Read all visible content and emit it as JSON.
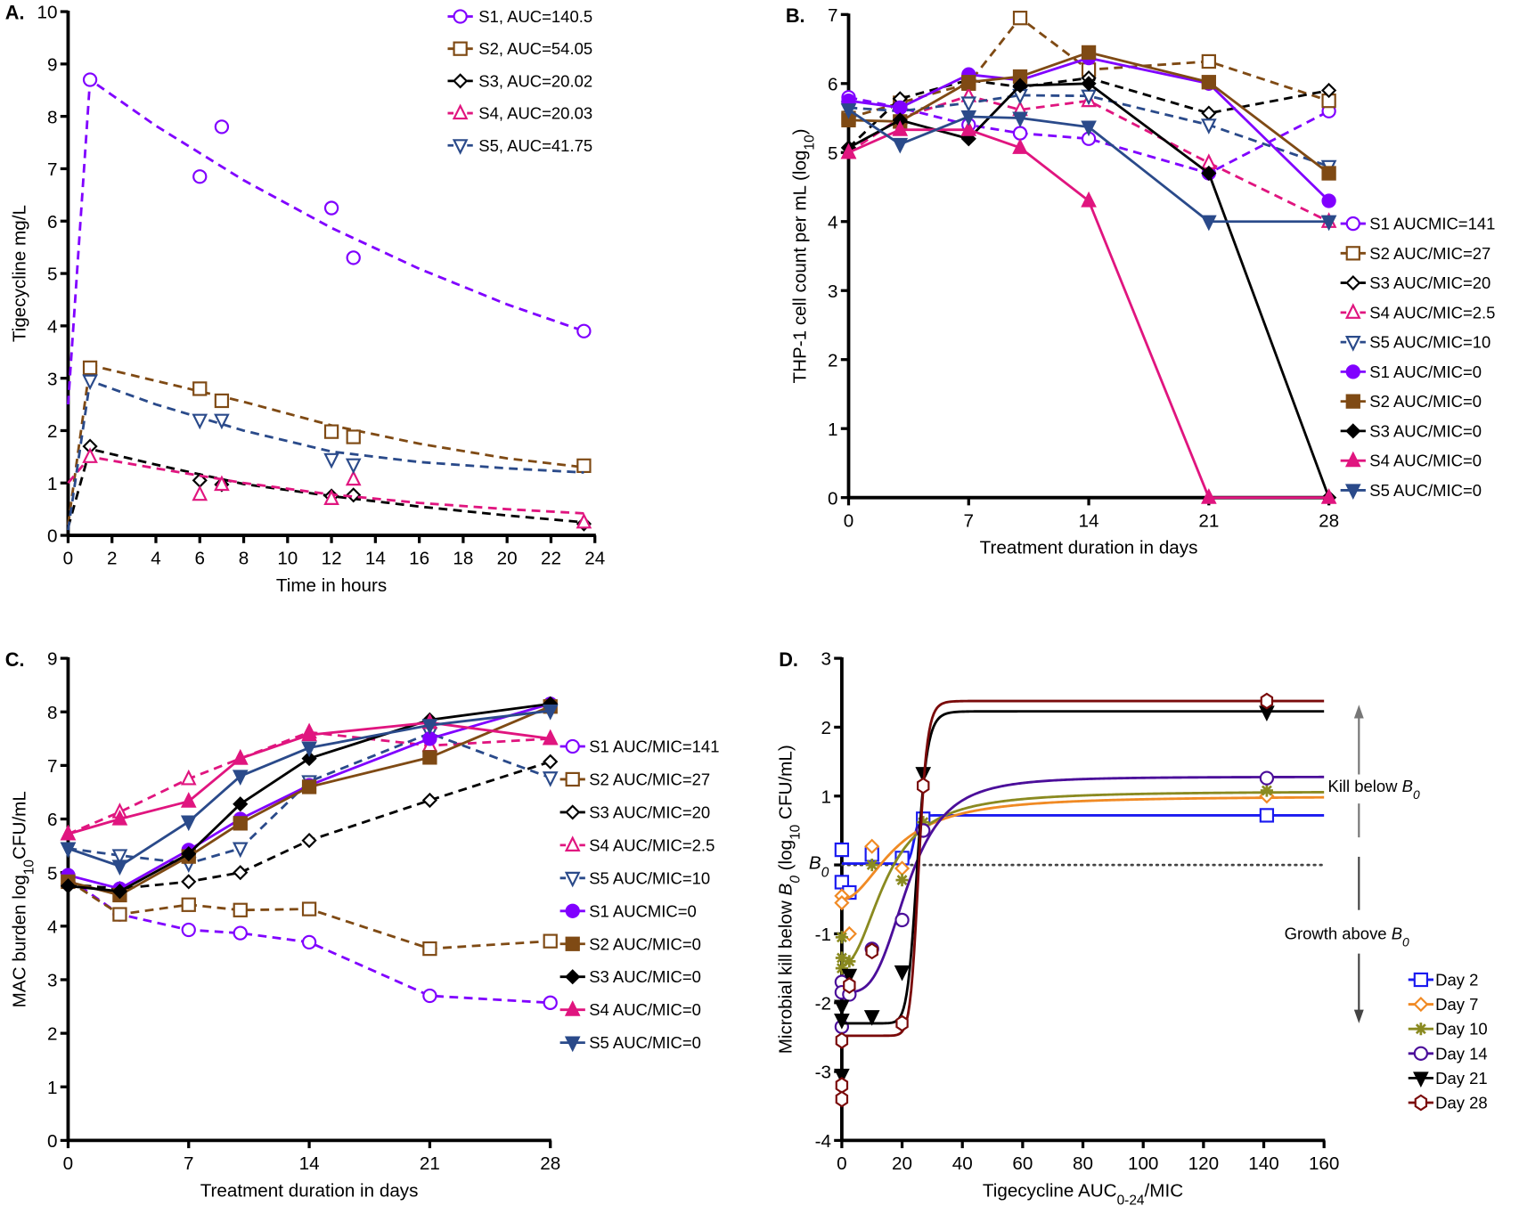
{
  "chart_data": [
    {
      "panel_label": "A.",
      "type": "scatter",
      "xlabel": [
        {
          "t": "Time in hours"
        }
      ],
      "ylabel": [
        {
          "t": "Tigecycline mg/L"
        }
      ],
      "xlim": [
        0,
        24
      ],
      "ylim": [
        0,
        10
      ],
      "xticks": [
        0,
        2,
        4,
        6,
        8,
        10,
        12,
        14,
        16,
        18,
        20,
        22,
        24
      ],
      "yticks": [
        0,
        1,
        2,
        3,
        4,
        5,
        6,
        7,
        8,
        9,
        10
      ],
      "legend": "top-right",
      "grid": false,
      "series": [
        {
          "name": "S1, AUC=140.5",
          "color": "#8000FF",
          "marker": "circle",
          "filled": false,
          "dashed": true,
          "connect": false,
          "x": [
            1,
            6,
            7,
            12,
            13,
            23.5
          ],
          "y": [
            8.7,
            6.85,
            7.8,
            6.25,
            5.3,
            3.9
          ],
          "fit": {
            "x": [
              0,
              1,
              4,
              8,
              12,
              16,
              20,
              23.5
            ],
            "y": [
              2.5,
              8.7,
              7.82,
              6.78,
              5.87,
              5.09,
              4.41,
              3.9
            ]
          }
        },
        {
          "name": "S2, AUC=54.05",
          "color": "#7F4A14",
          "marker": "square",
          "filled": false,
          "dashed": true,
          "connect": false,
          "x": [
            1,
            6,
            7,
            12,
            13,
            23.5
          ],
          "y": [
            3.2,
            2.8,
            2.57,
            1.98,
            1.88,
            1.33
          ],
          "fit": {
            "x": [
              0,
              1,
              4,
              8,
              12,
              16,
              20,
              23.5
            ],
            "y": [
              0.2,
              3.25,
              2.95,
              2.55,
              2.1,
              1.75,
              1.47,
              1.3
            ]
          }
        },
        {
          "name": "S3, AUC=20.02",
          "color": "#000000",
          "marker": "diamond",
          "filled": false,
          "dashed": true,
          "connect": false,
          "x": [
            1,
            6,
            7,
            12,
            13,
            23.5
          ],
          "y": [
            1.7,
            1.05,
            0.97,
            0.75,
            0.77,
            0.22
          ],
          "fit": {
            "x": [
              0,
              1,
              4,
              8,
              12,
              16,
              20,
              23.5
            ],
            "y": [
              0.15,
              1.65,
              1.35,
              0.98,
              0.75,
              0.55,
              0.38,
              0.25
            ]
          }
        },
        {
          "name": "S4, AUC=20.03",
          "color": "#E0157F",
          "marker": "triangle",
          "filled": false,
          "dashed": true,
          "connect": false,
          "x": [
            1,
            6,
            7,
            12,
            13,
            23.5
          ],
          "y": [
            1.5,
            0.78,
            0.97,
            0.7,
            1.07,
            0.25
          ],
          "fit": {
            "x": [
              0,
              1,
              4,
              8,
              12,
              16,
              20,
              23.5
            ],
            "y": [
              1.0,
              1.5,
              1.28,
              1.0,
              0.78,
              0.62,
              0.5,
              0.42
            ]
          }
        },
        {
          "name": "S5, AUC=41.75",
          "color": "#2A4A8A",
          "marker": "triangle-down",
          "filled": false,
          "dashed": true,
          "connect": false,
          "x": [
            1,
            6,
            7,
            12,
            13
          ],
          "y": [
            2.95,
            2.2,
            2.2,
            1.45,
            1.35
          ],
          "fit": {
            "x": [
              0,
              1,
              4,
              8,
              12,
              16,
              20,
              23.5
            ],
            "y": [
              0.1,
              2.95,
              2.5,
              2.0,
              1.6,
              1.4,
              1.28,
              1.2
            ]
          }
        }
      ]
    },
    {
      "panel_label": "B.",
      "type": "line",
      "xlabel": [
        {
          "t": "Treatment duration in days"
        }
      ],
      "ylabel": [
        {
          "t": "THP-1 cell count per mL (log"
        },
        {
          "t": "10",
          "sub": true
        },
        {
          "t": ")"
        }
      ],
      "xlim": [
        0,
        28
      ],
      "ylim": [
        0,
        7
      ],
      "xticks": [
        0,
        7,
        14,
        21,
        28
      ],
      "yticks": [
        0,
        1,
        2,
        3,
        4,
        5,
        6,
        7
      ],
      "legend": "right",
      "grid": false,
      "x": [
        0,
        3,
        7,
        10,
        14,
        21,
        28
      ],
      "series": [
        {
          "name": "S1 AUCMIC=141",
          "color": "#8000FF",
          "marker": "circle",
          "filled": false,
          "dashed": true,
          "y": [
            5.8,
            5.65,
            5.4,
            5.28,
            5.2,
            4.7,
            5.6
          ]
        },
        {
          "name": "S2 AUC/MIC=27",
          "color": "#7F4A14",
          "marker": "square",
          "filled": false,
          "dashed": true,
          "y": [
            5.5,
            5.72,
            6.0,
            6.95,
            6.2,
            6.32,
            5.75
          ]
        },
        {
          "name": "S3 AUC/MIC=20",
          "color": "#000000",
          "marker": "diamond",
          "filled": false,
          "dashed": true,
          "y": [
            5.07,
            5.78,
            6.05,
            5.95,
            6.08,
            5.57,
            5.9
          ]
        },
        {
          "name": "S4 AUC/MIC=2.5",
          "color": "#E0157F",
          "marker": "triangle",
          "filled": false,
          "dashed": true,
          "y": [
            5.0,
            5.5,
            5.82,
            5.62,
            5.75,
            4.85,
            4.0
          ]
        },
        {
          "name": "S5 AUC/MIC=10",
          "color": "#2A4A8A",
          "marker": "triangle-down",
          "filled": false,
          "dashed": true,
          "y": [
            5.65,
            5.6,
            5.72,
            5.83,
            5.82,
            5.4,
            4.8
          ]
        },
        {
          "name": "S1 AUC/MIC=0",
          "color": "#8000FF",
          "marker": "circle",
          "filled": true,
          "dashed": false,
          "y": [
            5.75,
            5.65,
            6.13,
            6.05,
            6.37,
            6.0,
            4.3
          ]
        },
        {
          "name": "S2 AUC/MIC=0",
          "color": "#7F4A14",
          "marker": "square",
          "filled": true,
          "dashed": false,
          "y": [
            5.47,
            5.45,
            6.02,
            6.1,
            6.45,
            6.02,
            4.7
          ]
        },
        {
          "name": "S3 AUC/MIC=0",
          "color": "#000000",
          "marker": "diamond",
          "filled": true,
          "dashed": false,
          "y": [
            5.07,
            5.47,
            5.2,
            5.97,
            6.0,
            4.7,
            0
          ]
        },
        {
          "name": "S4 AUC/MIC=0",
          "color": "#E0157F",
          "marker": "triangle",
          "filled": true,
          "dashed": false,
          "y": [
            5.0,
            5.33,
            5.33,
            5.07,
            4.3,
            0,
            0
          ]
        },
        {
          "name": "S5 AUC/MIC=0",
          "color": "#2A4A8A",
          "marker": "triangle-down",
          "filled": true,
          "dashed": false,
          "y": [
            5.62,
            5.12,
            5.52,
            5.5,
            5.37,
            4.0,
            4.0
          ]
        }
      ]
    },
    {
      "panel_label": "C.",
      "type": "line",
      "xlabel": [
        {
          "t": "Treatment duration in days"
        }
      ],
      "ylabel": [
        {
          "t": "MAC burden log"
        },
        {
          "t": "10",
          "sub": true
        },
        {
          "t": "CFU/mL"
        }
      ],
      "xlim": [
        0,
        28
      ],
      "ylim": [
        0,
        9
      ],
      "xticks": [
        0,
        7,
        14,
        21,
        28
      ],
      "yticks": [
        0,
        1,
        2,
        3,
        4,
        5,
        6,
        7,
        8,
        9
      ],
      "legend": "right",
      "grid": false,
      "x": [
        0,
        3,
        7,
        10,
        14,
        21,
        28
      ],
      "series": [
        {
          "name": "S1 AUC/MIC=141",
          "color": "#8000FF",
          "marker": "circle",
          "filled": false,
          "dashed": true,
          "y": [
            4.9,
            4.22,
            3.93,
            3.87,
            3.7,
            2.7,
            2.57
          ]
        },
        {
          "name": "S2 AUC/MIC=27",
          "color": "#7F4A14",
          "marker": "square",
          "filled": false,
          "dashed": true,
          "y": [
            4.85,
            4.22,
            4.4,
            4.3,
            4.32,
            3.58,
            3.72
          ]
        },
        {
          "name": "S3 AUC/MIC=20",
          "color": "#000000",
          "marker": "diamond",
          "filled": false,
          "dashed": true,
          "y": [
            4.78,
            4.7,
            4.83,
            5.0,
            5.6,
            6.35,
            7.07
          ]
        },
        {
          "name": "S4 AUC/MIC=2.5",
          "color": "#E0157F",
          "marker": "triangle",
          "filled": false,
          "dashed": true,
          "y": [
            5.72,
            6.13,
            6.75,
            7.13,
            7.62,
            7.37,
            7.5
          ]
        },
        {
          "name": "S5 AUC/MIC=10",
          "color": "#2A4A8A",
          "marker": "triangle-down",
          "filled": false,
          "dashed": true,
          "y": [
            5.45,
            5.32,
            5.17,
            5.45,
            6.7,
            7.6,
            6.77
          ]
        },
        {
          "name": "S1 AUCMIC=0",
          "color": "#8000FF",
          "marker": "circle",
          "filled": true,
          "dashed": false,
          "y": [
            4.95,
            4.7,
            5.42,
            6.0,
            6.63,
            7.5,
            8.15
          ]
        },
        {
          "name": "S2 AUC/MIC=0",
          "color": "#7F4A14",
          "marker": "square",
          "filled": true,
          "dashed": false,
          "y": [
            4.83,
            4.58,
            5.3,
            5.92,
            6.6,
            7.15,
            8.1
          ]
        },
        {
          "name": "S3 AUC/MIC=0",
          "color": "#000000",
          "marker": "diamond",
          "filled": true,
          "dashed": false,
          "y": [
            4.75,
            4.65,
            5.35,
            6.28,
            7.13,
            7.85,
            8.15
          ]
        },
        {
          "name": "S4 AUC/MIC=0",
          "color": "#E0157F",
          "marker": "triangle",
          "filled": true,
          "dashed": false,
          "y": [
            5.72,
            6.0,
            6.33,
            7.13,
            7.57,
            7.8,
            7.5
          ]
        },
        {
          "name": "S5 AUC/MIC=0",
          "color": "#2A4A8A",
          "marker": "triangle-down",
          "filled": true,
          "dashed": false,
          "y": [
            5.45,
            5.12,
            5.95,
            6.8,
            7.33,
            7.75,
            8.02
          ]
        }
      ]
    },
    {
      "panel_label": "D.",
      "type": "scatter",
      "xlabel": [
        {
          "t": "Tigecycline AUC"
        },
        {
          "t": "0-24",
          "sub": true
        },
        {
          "t": "/MIC"
        }
      ],
      "ylabel": [
        {
          "t": "Microbial kill below "
        },
        {
          "t": "B",
          "i": true
        },
        {
          "t": "0",
          "sub": true,
          "i": true
        },
        {
          "t": " (log"
        },
        {
          "t": "10",
          "sub": true
        },
        {
          "t": " CFU/mL)"
        }
      ],
      "xlim": [
        0,
        160
      ],
      "ylim": [
        -4,
        3
      ],
      "xticks": [
        0,
        20,
        40,
        60,
        80,
        100,
        120,
        140,
        160
      ],
      "yticks": [
        -4,
        -3,
        -2,
        -1,
        1,
        2,
        3
      ],
      "y_zero_label": [
        {
          "t": "B",
          "i": true
        },
        {
          "t": "0",
          "sub": true,
          "i": true
        }
      ],
      "legend": "bottom-right",
      "grid": false,
      "reference_line": {
        "y": 0,
        "style": "dotted"
      },
      "annotations": [
        {
          "segments": [
            {
              "t": "Kill below "
            },
            {
              "t": "B",
              "i": true
            },
            {
              "t": "0",
              "sub": true,
              "i": true
            }
          ],
          "arrow": "up"
        },
        {
          "segments": [
            {
              "t": "Growth above "
            },
            {
              "t": "B",
              "i": true
            },
            {
              "t": "0",
              "sub": true,
              "i": true
            }
          ],
          "arrow": "down"
        }
      ],
      "series": [
        {
          "name": "Day 2",
          "color": "#1A1AF0",
          "marker": "square",
          "filled": false,
          "x": [
            0,
            0,
            2.5,
            10,
            20,
            27,
            141
          ],
          "y": [
            0.22,
            -0.25,
            -0.4,
            0.15,
            0.1,
            0.67,
            0.72
          ],
          "fit": {
            "bottom": 0.02,
            "top": 0.72,
            "ec50": 24,
            "hill": 30
          }
        },
        {
          "name": "Day 7",
          "color": "#F08A24",
          "marker": "diamond",
          "filled": false,
          "x": [
            0,
            0,
            2.5,
            10,
            20,
            27,
            141
          ],
          "y": [
            -0.45,
            -0.55,
            -1.0,
            0.27,
            -0.05,
            0.5,
            1.0
          ],
          "fit": {
            "bottom": -0.5,
            "top": 1.0,
            "ec50": 18,
            "hill": 2
          }
        },
        {
          "name": "Day 10",
          "color": "#8A8A20",
          "marker": "asterisk",
          "filled": false,
          "x": [
            0,
            0,
            0,
            2.5,
            10,
            20,
            27,
            141
          ],
          "y": [
            -1.05,
            -1.35,
            -1.5,
            -1.4,
            0,
            -0.22,
            0.62,
            1.08
          ],
          "fit": {
            "bottom": -1.45,
            "top": 1.07,
            "ec50": 15,
            "hill": 2.2
          }
        },
        {
          "name": "Day 14",
          "color": "#4B0E9A",
          "marker": "circle",
          "filled": false,
          "x": [
            0,
            0,
            0,
            2.5,
            10,
            20,
            27,
            141
          ],
          "y": [
            -1.7,
            -1.85,
            -2.35,
            -1.88,
            -1.22,
            -0.8,
            0.5,
            1.26
          ],
          "fit": {
            "bottom": -1.85,
            "top": 1.28,
            "ec50": 22,
            "hill": 3.5
          }
        },
        {
          "name": "Day 21",
          "color": "#000000",
          "marker": "triangle-down",
          "filled": true,
          "x": [
            0,
            0,
            0,
            2.5,
            10,
            20,
            27,
            141
          ],
          "y": [
            -2.05,
            -2.25,
            -3.05,
            -1.6,
            -2.2,
            -1.55,
            1.33,
            2.22
          ],
          "fit": {
            "bottom": -2.3,
            "top": 2.23,
            "ec50": 25,
            "hill": 15
          }
        },
        {
          "name": "Day 28",
          "color": "#7A0A0A",
          "marker": "hexagon",
          "filled": false,
          "x": [
            0,
            0,
            0,
            2.5,
            10,
            20,
            27,
            141
          ],
          "y": [
            -2.55,
            -3.2,
            -3.4,
            -1.75,
            -1.25,
            -2.3,
            1.15,
            2.38
          ],
          "fit": {
            "bottom": -2.48,
            "top": 2.38,
            "ec50": 25.5,
            "hill": 18
          }
        }
      ]
    }
  ]
}
